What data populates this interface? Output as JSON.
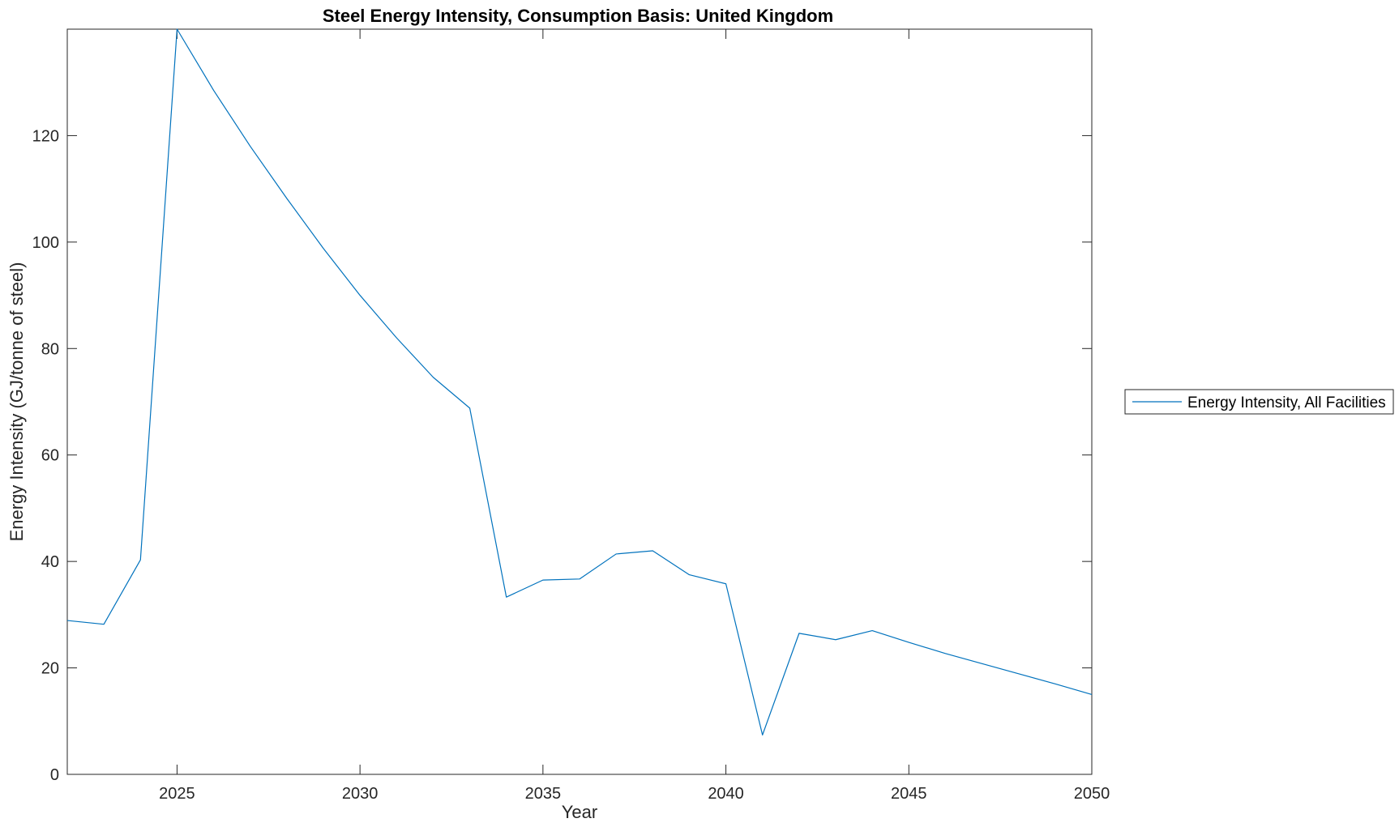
{
  "chart_data": {
    "type": "line",
    "title": "Steel Energy Intensity, Consumption Basis: United Kingdom",
    "xlabel": "Year",
    "ylabel": "Energy Intensity (GJ/tonne of steel)",
    "xlim": [
      2022,
      2050
    ],
    "ylim": [
      0,
      140
    ],
    "xticks": [
      2025,
      2030,
      2035,
      2040,
      2045,
      2050
    ],
    "yticks": [
      0,
      20,
      40,
      60,
      80,
      100,
      120
    ],
    "grid": false,
    "legend_position": "outside-right",
    "series": [
      {
        "name": "Energy Intensity, All Facilities",
        "color": "#0072BD",
        "x": [
          2022,
          2023,
          2024,
          2025,
          2026,
          2027,
          2028,
          2029,
          2030,
          2031,
          2032,
          2033,
          2034,
          2035,
          2036,
          2037,
          2038,
          2039,
          2040,
          2041,
          2042,
          2043,
          2044,
          2045,
          2046,
          2047,
          2048,
          2049,
          2050
        ],
        "y": [
          28.9,
          28.2,
          40.3,
          140.0,
          128.5,
          118.0,
          108.2,
          98.8,
          90.0,
          82.0,
          74.6,
          68.8,
          33.3,
          36.5,
          36.7,
          41.4,
          42.0,
          37.5,
          35.8,
          7.4,
          26.5,
          25.3,
          27.0,
          24.8,
          22.7,
          20.8,
          18.9,
          17.0,
          15.0
        ]
      }
    ]
  }
}
